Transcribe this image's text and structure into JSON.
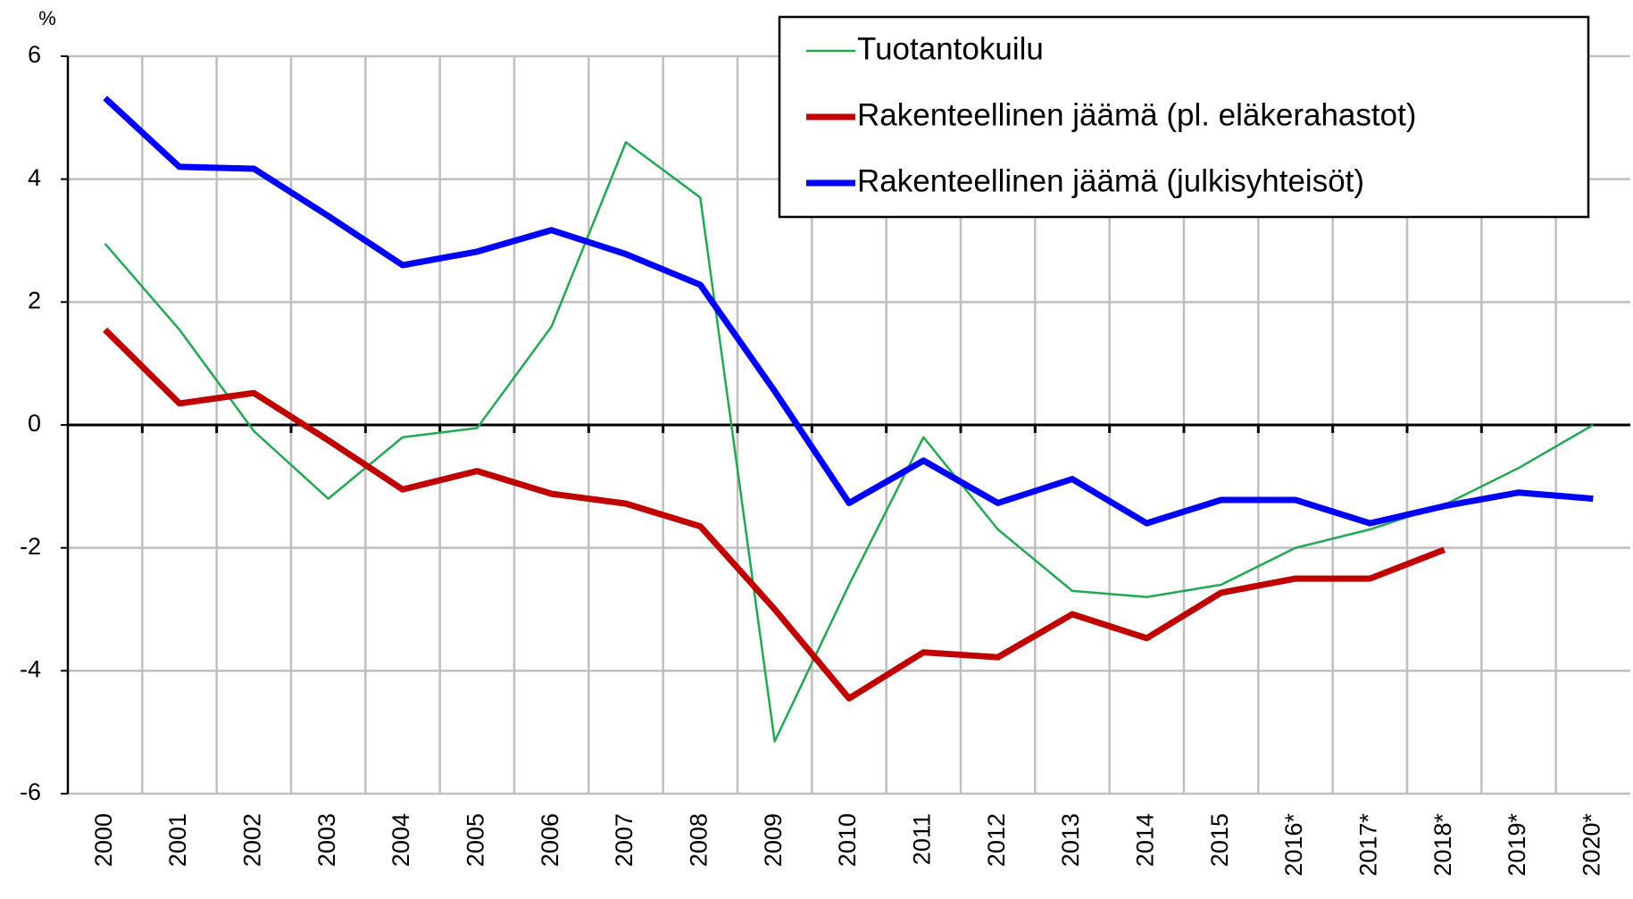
{
  "chart_data": {
    "type": "line",
    "y_label": "%",
    "categories": [
      "2000",
      "2001",
      "2002",
      "2003",
      "2004",
      "2005",
      "2006",
      "2007",
      "2008",
      "2009",
      "2010",
      "2011",
      "2012",
      "2013",
      "2014",
      "2015",
      "2016*",
      "2017*",
      "2018*",
      "2019*",
      "2020*"
    ],
    "series": [
      {
        "name": "Tuotantokuilu",
        "color": "#22a852",
        "width": 2.5,
        "values": [
          2.95,
          1.55,
          -0.1,
          -1.2,
          -0.2,
          -0.05,
          1.6,
          4.6,
          3.7,
          -5.15,
          -2.6,
          -0.2,
          -1.7,
          -2.7,
          -2.8,
          -2.6,
          -2.0,
          -1.7,
          -1.3,
          -0.7,
          0.0
        ]
      },
      {
        "name": "Rakenteellinen jäämä (pl. eläkerahastot)",
        "color": "#c00000",
        "width": 7,
        "values": [
          1.55,
          0.35,
          0.52,
          -0.25,
          -1.05,
          -0.75,
          -1.12,
          -1.28,
          -1.65,
          -3.0,
          -4.45,
          -3.7,
          -3.78,
          -3.08,
          -3.47,
          -2.73,
          -2.5,
          -2.5,
          -2.03,
          null,
          null
        ]
      },
      {
        "name": "Rakenteellinen jäämä (julkisyhteisöt)",
        "color": "#0000ff",
        "width": 7,
        "values": [
          5.32,
          4.2,
          4.17,
          3.4,
          2.6,
          2.82,
          3.17,
          2.78,
          2.28,
          0.55,
          -1.27,
          -0.58,
          -1.27,
          -0.88,
          -1.6,
          -1.22,
          -1.22,
          -1.6,
          -1.32,
          -1.1,
          -1.2
        ]
      }
    ],
    "ylim": [
      -6,
      6
    ],
    "yticks": [
      -6,
      -4,
      -2,
      0,
      2,
      4,
      6
    ],
    "grid": true,
    "legend": "upper right"
  }
}
